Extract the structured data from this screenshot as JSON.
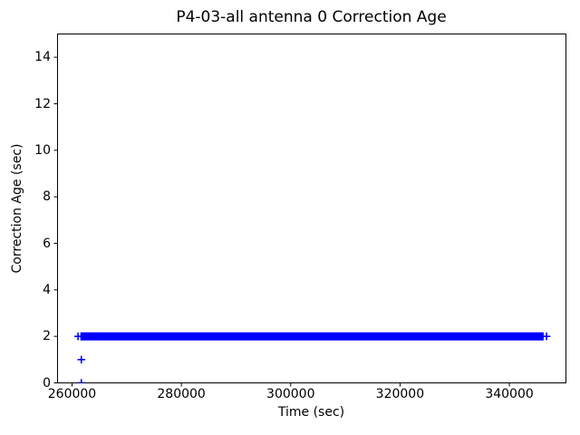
{
  "figure": {
    "background": "#ffffff",
    "spine_color": "#000000",
    "text_color": "#000000"
  },
  "chart_data": {
    "type": "scatter",
    "title": "P4-03-all antenna 0 Correction Age",
    "xlabel": "Time (sec)",
    "ylabel": "Correction Age (sec)",
    "xlim": [
      257350,
      350350
    ],
    "ylim": [
      0,
      15
    ],
    "xtick_values": [
      260000,
      280000,
      300000,
      320000,
      340000
    ],
    "xtick_labels": [
      "260000",
      "280000",
      "300000",
      "320000",
      "340000"
    ],
    "ytick_values": [
      0,
      2,
      4,
      6,
      8,
      10,
      12,
      14
    ],
    "ytick_labels": [
      "0",
      "2",
      "4",
      "6",
      "8",
      "10",
      "12",
      "14"
    ],
    "grid": false,
    "legend": false,
    "marker": "plus",
    "marker_color": "#0000ff",
    "series": [
      {
        "name": "antenna-0-correction-age",
        "color": "#0000ff",
        "dense_runs": [
          {
            "y": 2,
            "x_start": 261700,
            "x_end": 346100
          }
        ],
        "points": [
          {
            "x": 261100,
            "y": 2
          },
          {
            "x": 346800,
            "y": 2
          },
          {
            "x": 261700,
            "y": 1
          },
          {
            "x": 261700,
            "y": 0
          }
        ]
      }
    ]
  }
}
